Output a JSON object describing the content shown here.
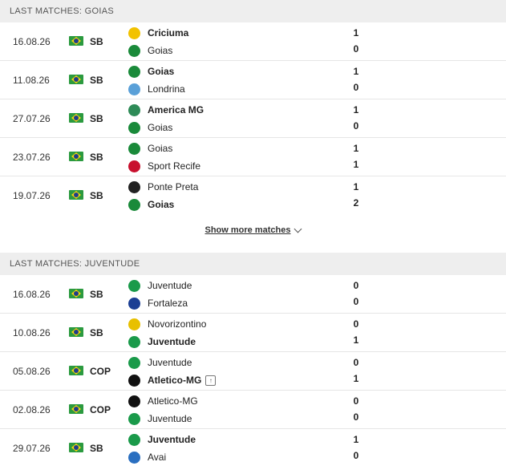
{
  "sections": [
    {
      "title": "LAST MATCHES: GOIAS",
      "matches": [
        {
          "date": "16.08.26",
          "comp": "SB",
          "home": "Criciuma",
          "home_bold": true,
          "home_logo": "criciuma-logo",
          "away": "Goias",
          "away_bold": false,
          "away_logo": "goias-logo",
          "home_score": "1",
          "away_score": "0"
        },
        {
          "date": "11.08.26",
          "comp": "SB",
          "home": "Goias",
          "home_bold": true,
          "home_logo": "goias-logo",
          "away": "Londrina",
          "away_bold": false,
          "away_logo": "londrina-logo",
          "home_score": "1",
          "away_score": "0"
        },
        {
          "date": "27.07.26",
          "comp": "SB",
          "home": "America MG",
          "home_bold": true,
          "home_logo": "america-mg-logo",
          "away": "Goias",
          "away_bold": false,
          "away_logo": "goias-logo",
          "home_score": "1",
          "away_score": "0"
        },
        {
          "date": "23.07.26",
          "comp": "SB",
          "home": "Goias",
          "home_bold": false,
          "home_logo": "goias-logo",
          "away": "Sport Recife",
          "away_bold": false,
          "away_logo": "sport-recife-logo",
          "home_score": "1",
          "away_score": "1"
        },
        {
          "date": "19.07.26",
          "comp": "SB",
          "home": "Ponte Preta",
          "home_bold": false,
          "home_logo": "ponte-preta-logo",
          "away": "Goias",
          "away_bold": true,
          "away_logo": "goias-logo",
          "home_score": "1",
          "away_score": "2"
        }
      ],
      "show_more": "Show more matches"
    },
    {
      "title": "LAST MATCHES: JUVENTUDE",
      "matches": [
        {
          "date": "16.08.26",
          "comp": "SB",
          "home": "Juventude",
          "home_bold": false,
          "home_logo": "juventude-logo",
          "away": "Fortaleza",
          "away_bold": false,
          "away_logo": "fortaleza-logo",
          "home_score": "0",
          "away_score": "0"
        },
        {
          "date": "10.08.26",
          "comp": "SB",
          "home": "Novorizontino",
          "home_bold": false,
          "home_logo": "novorizontino-logo",
          "away": "Juventude",
          "away_bold": true,
          "away_logo": "juventude-logo",
          "home_score": "0",
          "away_score": "1"
        },
        {
          "date": "05.08.26",
          "comp": "COP",
          "home": "Juventude",
          "home_bold": false,
          "home_logo": "juventude-logo",
          "away": "Atletico-MG",
          "away_bold": true,
          "away_logo": "atletico-mg-logo",
          "away_badge": true,
          "home_score": "0",
          "away_score": "1"
        },
        {
          "date": "02.08.26",
          "comp": "COP",
          "home": "Atletico-MG",
          "home_bold": false,
          "home_logo": "atletico-mg-logo",
          "away": "Juventude",
          "away_bold": false,
          "away_logo": "juventude-logo",
          "home_score": "0",
          "away_score": "0"
        },
        {
          "date": "29.07.26",
          "comp": "SB",
          "home": "Juventude",
          "home_bold": true,
          "home_logo": "juventude-logo",
          "away": "Avai",
          "away_bold": false,
          "away_logo": "avai-logo",
          "home_score": "1",
          "away_score": "0"
        }
      ]
    }
  ],
  "colors": {
    "goias-logo": "#1a8a3a",
    "juventude-logo": "#1a9a4a",
    "criciuma-logo": "#f2c200",
    "londrina-logo": "#5aa0d8",
    "america-mg-logo": "#2e8b57",
    "sport-recife-logo": "#c8102e",
    "ponte-preta-logo": "#222222",
    "fortaleza-logo": "#1c3f94",
    "novorizontino-logo": "#e8c000",
    "atletico-mg-logo": "#111111",
    "avai-logo": "#2a6fc0"
  }
}
